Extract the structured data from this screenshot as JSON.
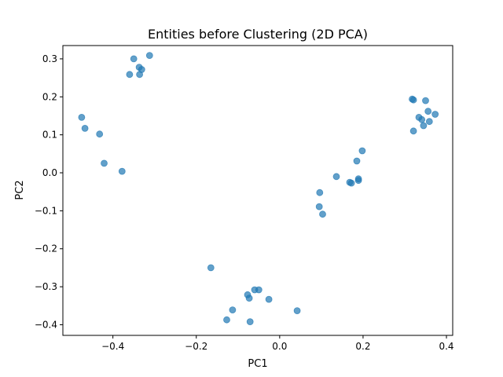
{
  "chart_data": {
    "type": "scatter",
    "title": "Entities before Clustering (2D PCA)",
    "xlabel": "PC1",
    "ylabel": "PC2",
    "xlim": [
      -0.52,
      0.415
    ],
    "ylim": [
      -0.428,
      0.335
    ],
    "xticks": [
      -0.4,
      -0.2,
      0.0,
      0.2,
      0.4
    ],
    "xtick_labels": [
      "−0.4",
      "−0.2",
      "0.0",
      "0.2",
      "0.4"
    ],
    "yticks": [
      -0.4,
      -0.3,
      -0.2,
      -0.1,
      0.0,
      0.1,
      0.2,
      0.3
    ],
    "ytick_labels": [
      "−0.4",
      "−0.3",
      "−0.2",
      "−0.1",
      "0.0",
      "0.1",
      "0.2",
      "0.3"
    ],
    "grid": false,
    "color": "#1f77b4",
    "points": [
      {
        "x": -0.35,
        "y": 0.3
      },
      {
        "x": -0.312,
        "y": 0.309
      },
      {
        "x": -0.337,
        "y": 0.278
      },
      {
        "x": -0.331,
        "y": 0.272
      },
      {
        "x": -0.36,
        "y": 0.259
      },
      {
        "x": -0.336,
        "y": 0.259
      },
      {
        "x": -0.475,
        "y": 0.146
      },
      {
        "x": -0.467,
        "y": 0.117
      },
      {
        "x": -0.432,
        "y": 0.102
      },
      {
        "x": -0.421,
        "y": 0.025
      },
      {
        "x": -0.378,
        "y": 0.004
      },
      {
        "x": 0.318,
        "y": 0.194
      },
      {
        "x": 0.321,
        "y": 0.192
      },
      {
        "x": 0.35,
        "y": 0.19
      },
      {
        "x": 0.356,
        "y": 0.162
      },
      {
        "x": 0.373,
        "y": 0.154
      },
      {
        "x": 0.334,
        "y": 0.146
      },
      {
        "x": 0.341,
        "y": 0.14
      },
      {
        "x": 0.359,
        "y": 0.135
      },
      {
        "x": 0.345,
        "y": 0.124
      },
      {
        "x": 0.321,
        "y": 0.11
      },
      {
        "x": 0.198,
        "y": 0.058
      },
      {
        "x": 0.185,
        "y": 0.031
      },
      {
        "x": 0.136,
        "y": -0.01
      },
      {
        "x": 0.189,
        "y": -0.016
      },
      {
        "x": 0.189,
        "y": -0.02
      },
      {
        "x": 0.168,
        "y": -0.025
      },
      {
        "x": 0.172,
        "y": -0.027
      },
      {
        "x": 0.096,
        "y": -0.052
      },
      {
        "x": 0.095,
        "y": -0.089
      },
      {
        "x": 0.103,
        "y": -0.109
      },
      {
        "x": -0.165,
        "y": -0.25
      },
      {
        "x": -0.06,
        "y": -0.308
      },
      {
        "x": -0.05,
        "y": -0.308
      },
      {
        "x": -0.077,
        "y": -0.321
      },
      {
        "x": -0.073,
        "y": -0.33
      },
      {
        "x": -0.026,
        "y": -0.333
      },
      {
        "x": -0.113,
        "y": -0.361
      },
      {
        "x": 0.042,
        "y": -0.363
      },
      {
        "x": -0.127,
        "y": -0.387
      },
      {
        "x": -0.071,
        "y": -0.392
      }
    ]
  }
}
